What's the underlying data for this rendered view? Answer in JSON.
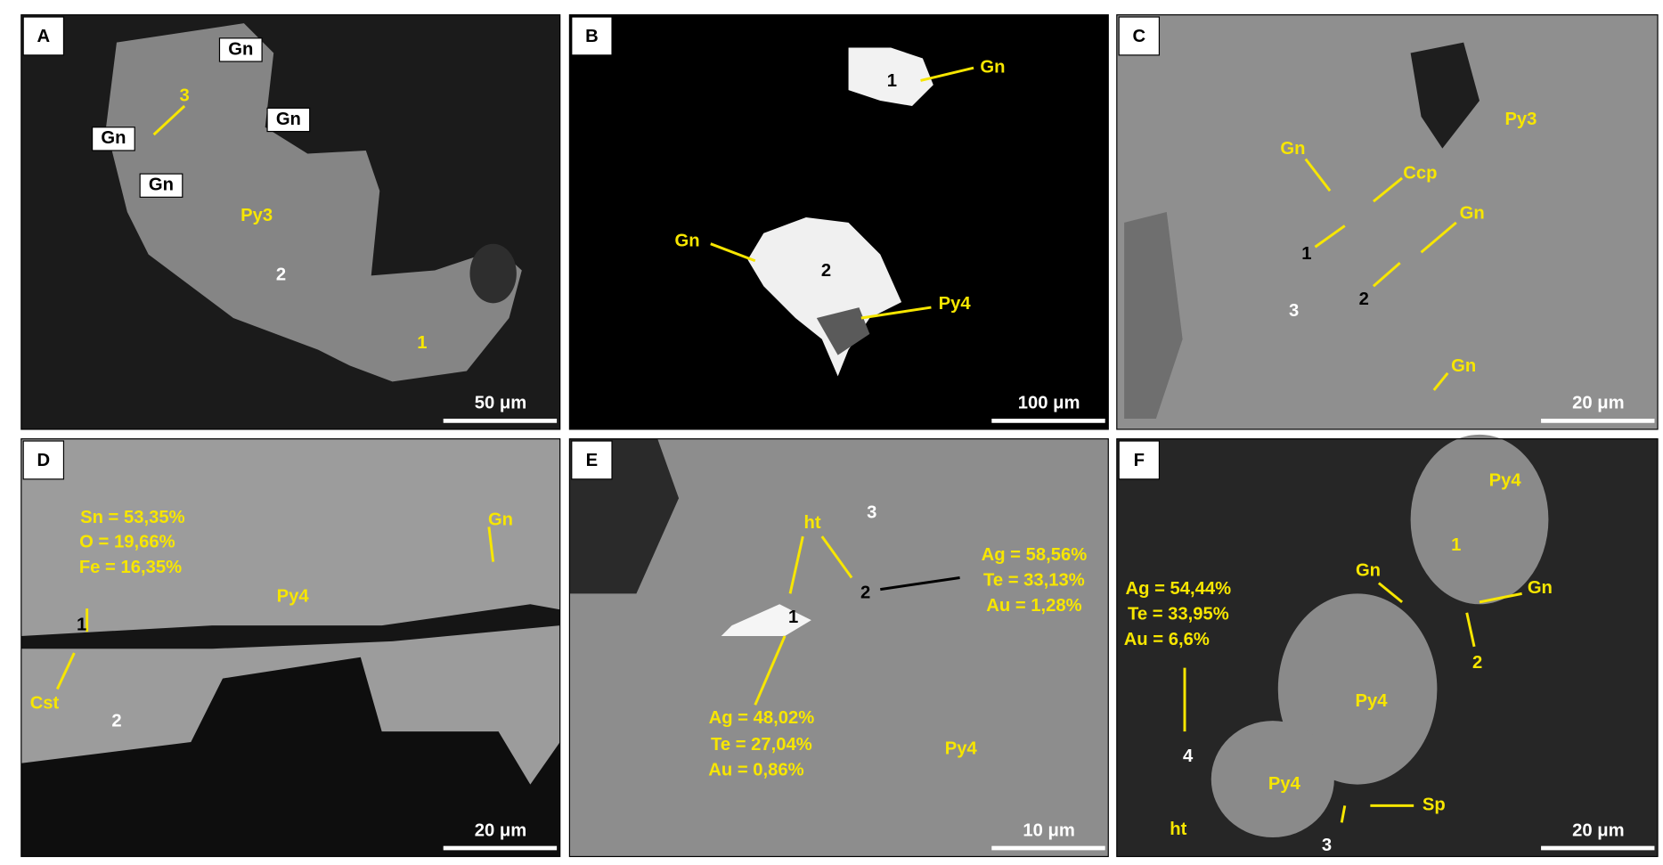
{
  "panels": [
    {
      "letter": "A",
      "labels": [
        "Gn",
        "Gn",
        "Gn",
        "Gn",
        "3",
        "Py3",
        "2",
        "1"
      ],
      "scale_bar": "50 μm"
    },
    {
      "letter": "B",
      "labels": [
        "1",
        "Gn",
        "Gn",
        "2",
        "Py4"
      ],
      "scale_bar": "100 μm"
    },
    {
      "letter": "C",
      "labels": [
        "Py3",
        "Gn",
        "Ccp",
        "Gn",
        "1",
        "2",
        "3",
        "Gn"
      ],
      "scale_bar": "20 μm"
    },
    {
      "letter": "D",
      "labels": [
        "Sn  = 53,35%",
        "O = 19,66%",
        "Fe = 16,35%",
        "Gn",
        "Py4",
        "1",
        "Cst",
        "2"
      ],
      "scale_bar": "20 μm"
    },
    {
      "letter": "E",
      "labels": [
        "ht",
        "3",
        "Ag  = 58,56%",
        "Te = 33,13%",
        "Au  = 1,28%",
        "2",
        "1",
        "Ag  = 48,02%",
        "Te = 27,04%",
        "Au  = 0,86%",
        "Py4"
      ],
      "scale_bar": "10 μm"
    },
    {
      "letter": "F",
      "labels": [
        "Py4",
        "1",
        "Gn",
        "Gn",
        "Ag  = 54,44%",
        "Te = 33,95%",
        "Au  = 6,6%",
        "2",
        "Py4",
        "4",
        "Py4",
        "ht",
        "Sp",
        "3"
      ],
      "scale_bar": "20 μm"
    }
  ]
}
